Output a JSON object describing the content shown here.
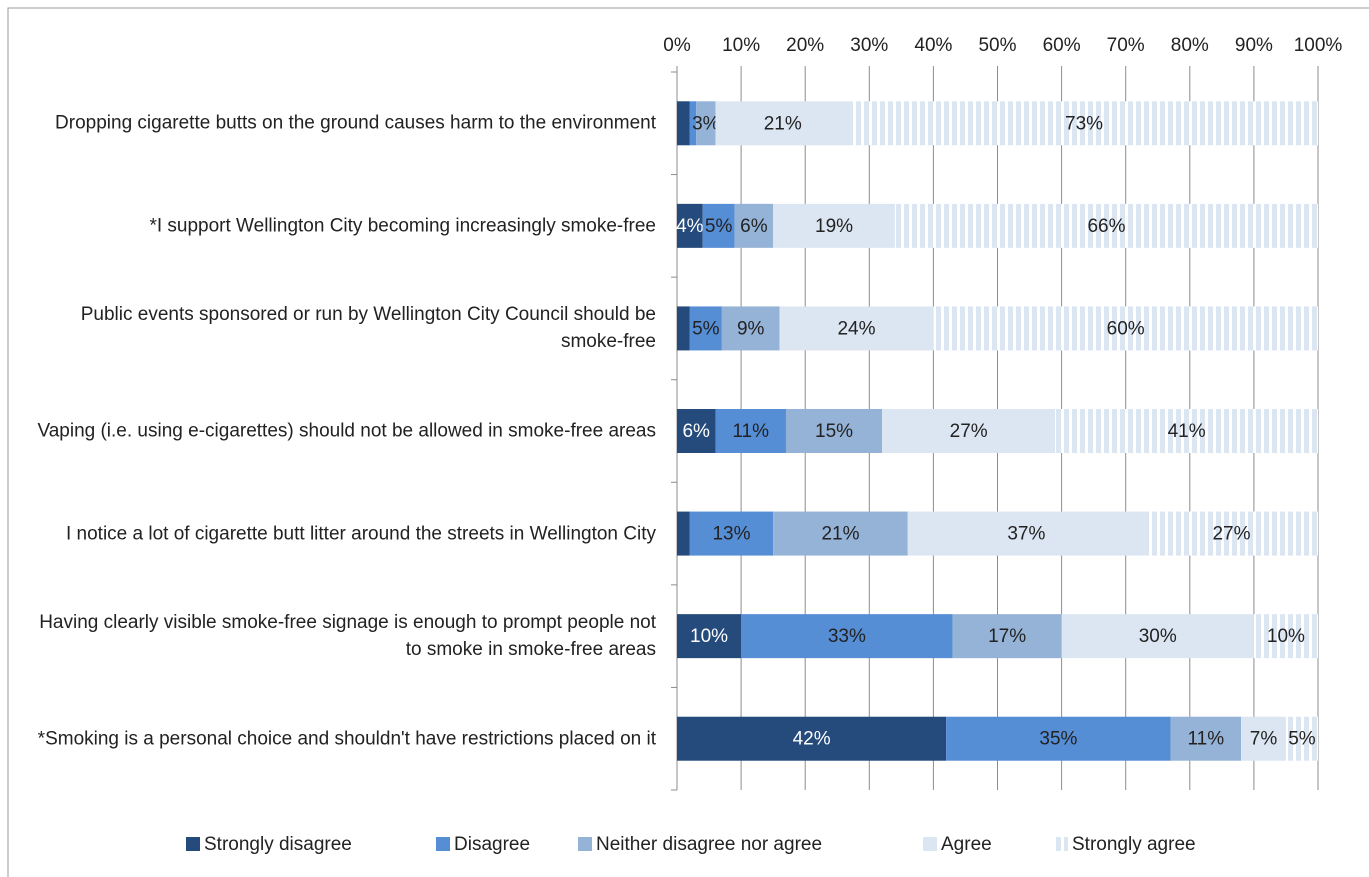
{
  "chart_data": {
    "type": "stacked-bar-horizontal",
    "categories": [
      "Dropping cigarette butts on the ground causes harm to the environment",
      "*I support Wellington City becoming increasingly smoke-free",
      "Public events sponsored or run by Wellington City Council should be smoke-free",
      "Vaping (i.e. using e-cigarettes) should not be allowed in smoke-free areas",
      "I notice a lot of cigarette butt litter around the streets in Wellington City",
      "Having clearly visible smoke-free signage is enough to prompt people not to smoke in smoke-free areas",
      "*Smoking is a personal choice and shouldn't have restrictions placed on it"
    ],
    "series": [
      {
        "name": "Strongly disagree",
        "color": "#254a7c",
        "label_color": "#ffffff",
        "values": [
          2,
          4,
          2,
          6,
          2,
          10,
          42
        ],
        "value_labels": [
          null,
          "4%",
          null,
          "6%",
          null,
          "10%",
          "42%"
        ]
      },
      {
        "name": "Disagree",
        "color": "#558ed5",
        "label_color": "#222222",
        "values": [
          1,
          5,
          5,
          11,
          13,
          33,
          35
        ],
        "value_labels": [
          null,
          "5%",
          "5%",
          "11%",
          "13%",
          "33%",
          "35%"
        ]
      },
      {
        "name": "Neither disagree nor agree",
        "color": "#95b3d7",
        "label_color": "#222222",
        "values": [
          3,
          6,
          9,
          15,
          21,
          17,
          11
        ],
        "value_labels": [
          "3%",
          "6%",
          "9%",
          "15%",
          "21%",
          "17%",
          "11%"
        ]
      },
      {
        "name": "Agree",
        "color": "#dce6f2",
        "label_color": "#222222",
        "values": [
          21,
          19,
          24,
          27,
          37,
          30,
          7
        ],
        "value_labels": [
          "21%",
          "19%",
          "24%",
          "27%",
          "37%",
          "30%",
          "7%"
        ]
      },
      {
        "name": "Strongly agree",
        "color": "#dce6f2",
        "pattern": "vertical-stripes",
        "label_color": "#222222",
        "values": [
          73,
          66,
          60,
          41,
          27,
          10,
          5
        ],
        "value_labels": [
          "73%",
          "66%",
          "60%",
          "41%",
          "27%",
          "10%",
          "5%"
        ]
      }
    ],
    "xlim": [
      0,
      100
    ],
    "xticks": [
      {
        "value": 0,
        "label": "0%"
      },
      {
        "value": 10,
        "label": "10%"
      },
      {
        "value": 20,
        "label": "20%"
      },
      {
        "value": 30,
        "label": "30%"
      },
      {
        "value": 40,
        "label": "40%"
      },
      {
        "value": 50,
        "label": "50%"
      },
      {
        "value": 60,
        "label": "60%"
      },
      {
        "value": 70,
        "label": "70%"
      },
      {
        "value": 80,
        "label": "80%"
      },
      {
        "value": 90,
        "label": "90%"
      },
      {
        "value": 100,
        "label": "100%"
      }
    ],
    "grid": true,
    "legend": "bottom"
  }
}
